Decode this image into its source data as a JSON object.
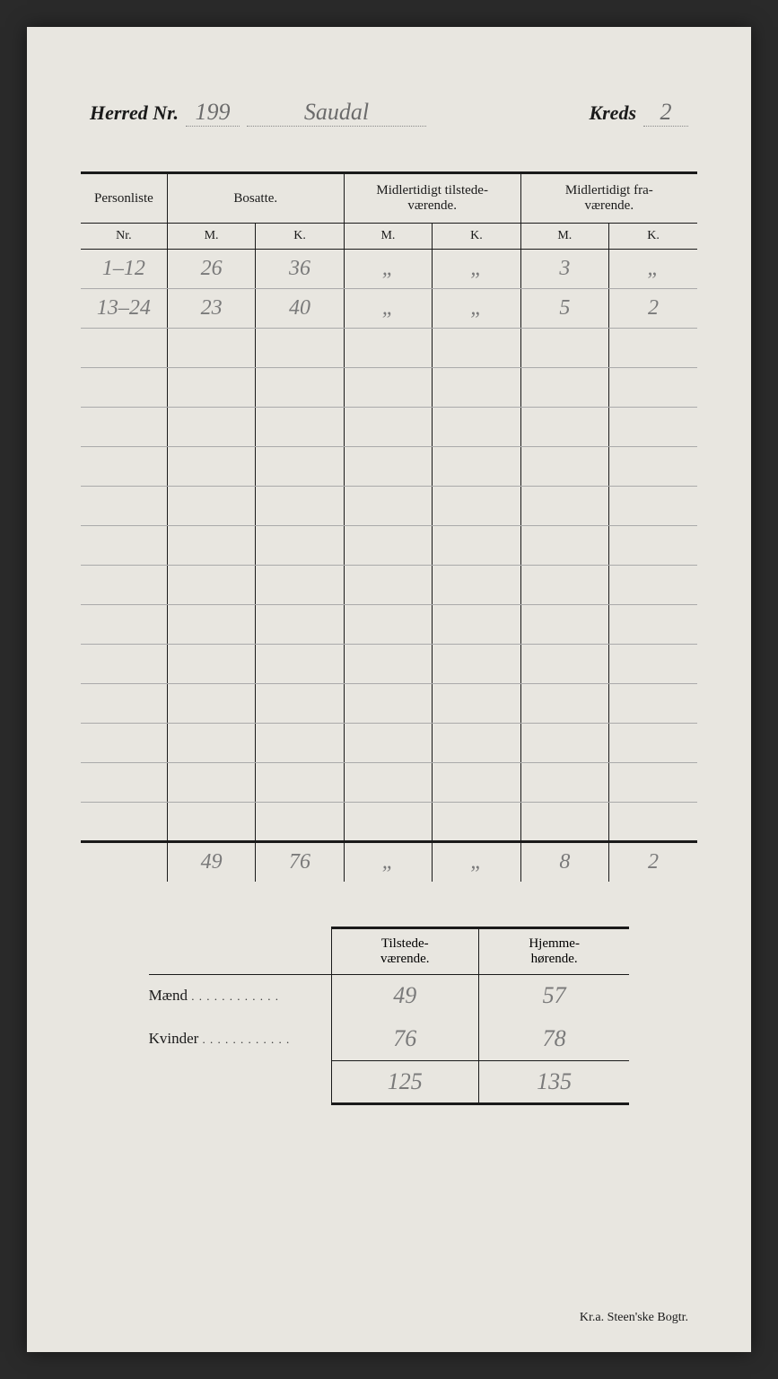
{
  "header": {
    "herred_label": "Herred Nr.",
    "herred_nr": "199",
    "herred_name": "Saudal",
    "kreds_label": "Kreds",
    "kreds_nr": "2"
  },
  "main_table": {
    "columns": {
      "personliste": "Personliste",
      "nr": "Nr.",
      "bosatte": "Bosatte.",
      "midl_tilstede": "Midlertidigt tilstede-\nværende.",
      "midl_fra": "Midlertidigt fra-\nværende.",
      "m": "M.",
      "k": "K."
    },
    "rows": [
      {
        "nr": "1–12",
        "bos_m": "26",
        "bos_k": "36",
        "til_m": "„",
        "til_k": "„",
        "fra_m": "3",
        "fra_k": "„"
      },
      {
        "nr": "13–24",
        "bos_m": "23",
        "bos_k": "40",
        "til_m": "„",
        "til_k": "„",
        "fra_m": "5",
        "fra_k": "2"
      },
      {
        "nr": "",
        "bos_m": "",
        "bos_k": "",
        "til_m": "",
        "til_k": "",
        "fra_m": "",
        "fra_k": ""
      },
      {
        "nr": "",
        "bos_m": "",
        "bos_k": "",
        "til_m": "",
        "til_k": "",
        "fra_m": "",
        "fra_k": ""
      },
      {
        "nr": "",
        "bos_m": "",
        "bos_k": "",
        "til_m": "",
        "til_k": "",
        "fra_m": "",
        "fra_k": ""
      },
      {
        "nr": "",
        "bos_m": "",
        "bos_k": "",
        "til_m": "",
        "til_k": "",
        "fra_m": "",
        "fra_k": ""
      },
      {
        "nr": "",
        "bos_m": "",
        "bos_k": "",
        "til_m": "",
        "til_k": "",
        "fra_m": "",
        "fra_k": ""
      },
      {
        "nr": "",
        "bos_m": "",
        "bos_k": "",
        "til_m": "",
        "til_k": "",
        "fra_m": "",
        "fra_k": ""
      },
      {
        "nr": "",
        "bos_m": "",
        "bos_k": "",
        "til_m": "",
        "til_k": "",
        "fra_m": "",
        "fra_k": ""
      },
      {
        "nr": "",
        "bos_m": "",
        "bos_k": "",
        "til_m": "",
        "til_k": "",
        "fra_m": "",
        "fra_k": ""
      },
      {
        "nr": "",
        "bos_m": "",
        "bos_k": "",
        "til_m": "",
        "til_k": "",
        "fra_m": "",
        "fra_k": ""
      },
      {
        "nr": "",
        "bos_m": "",
        "bos_k": "",
        "til_m": "",
        "til_k": "",
        "fra_m": "",
        "fra_k": ""
      },
      {
        "nr": "",
        "bos_m": "",
        "bos_k": "",
        "til_m": "",
        "til_k": "",
        "fra_m": "",
        "fra_k": ""
      },
      {
        "nr": "",
        "bos_m": "",
        "bos_k": "",
        "til_m": "",
        "til_k": "",
        "fra_m": "",
        "fra_k": ""
      },
      {
        "nr": "",
        "bos_m": "",
        "bos_k": "",
        "til_m": "",
        "til_k": "",
        "fra_m": "",
        "fra_k": ""
      }
    ],
    "totals": {
      "nr": "",
      "bos_m": "49",
      "bos_k": "76",
      "til_m": "„",
      "til_k": "„",
      "fra_m": "8",
      "fra_k": "2"
    }
  },
  "summary": {
    "col_tilstede": "Tilstede-\nværende.",
    "col_hjemme": "Hjemme-\nhørende.",
    "row_maend": "Mænd",
    "row_kvinder": "Kvinder",
    "values": {
      "maend_til": "49",
      "maend_hjem": "57",
      "kvinder_til": "76",
      "kvinder_hjem": "78",
      "total_til": "125",
      "total_hjem": "135"
    }
  },
  "footer": "Kr.a.  Steen'ske Bogtr.",
  "style": {
    "page_bg": "#e8e6e0",
    "ink": "#1a1a1a",
    "pencil": "#7a7a7a",
    "border_heavy": 3,
    "border_light": 1
  }
}
